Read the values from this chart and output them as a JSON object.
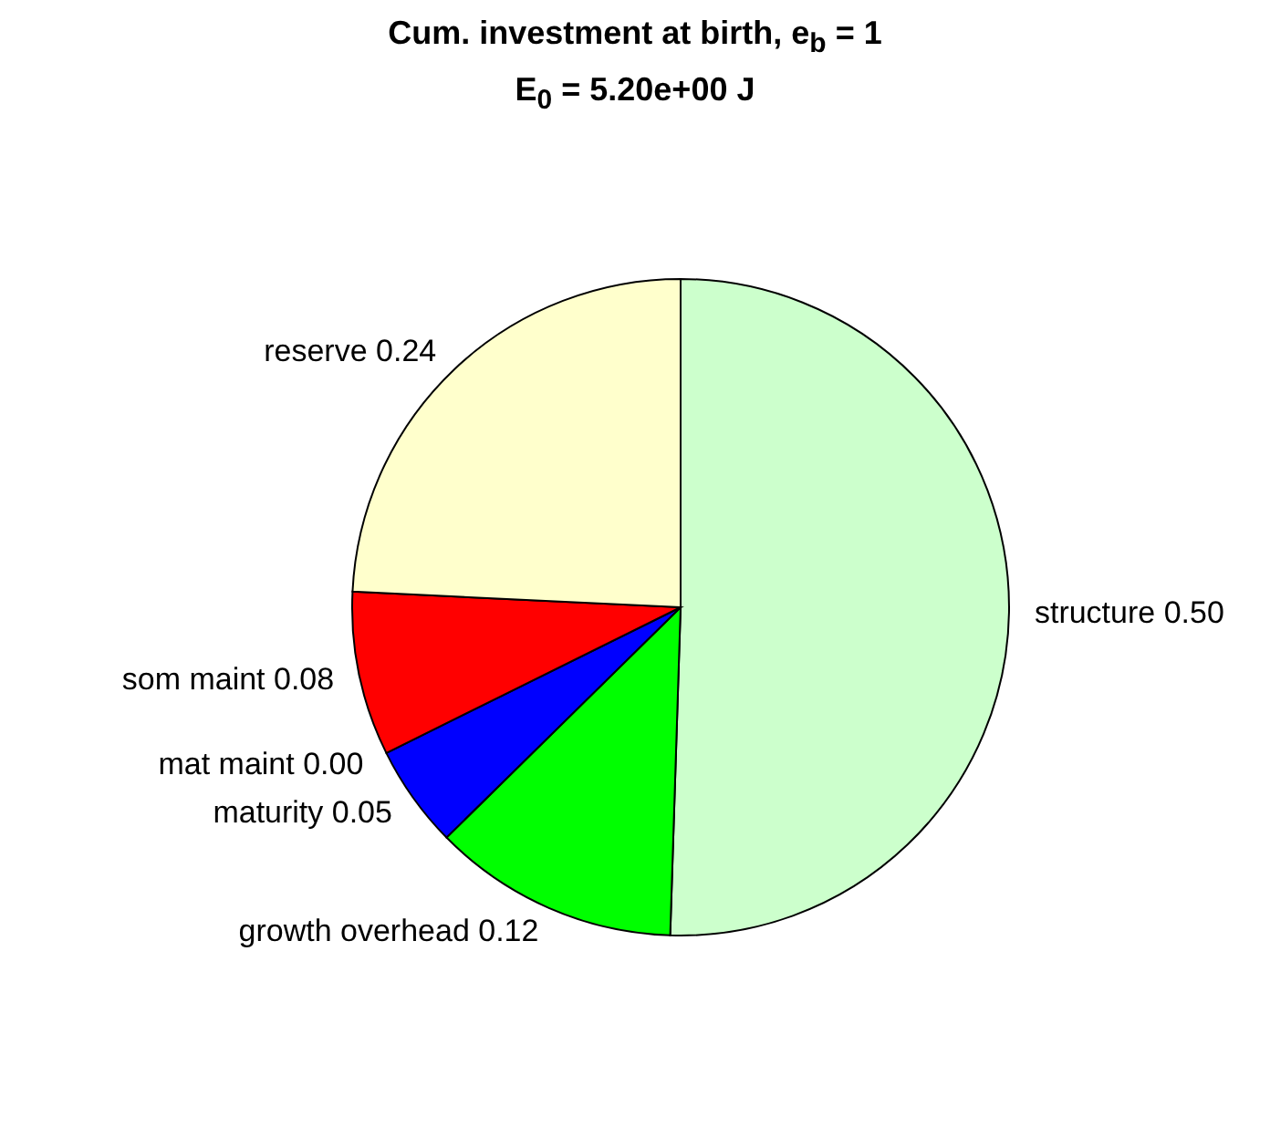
{
  "chart_data": {
    "type": "pie",
    "title": "Cum. investment at birth, e$_{b}$ = 1",
    "subtitle": "E$_{0}$ = 5.20e+00 J",
    "categories": [
      "structure",
      "growth overhead",
      "maturity",
      "mat maint",
      "som maint",
      "reserve"
    ],
    "values": [
      0.5,
      0.12,
      0.05,
      0.0,
      0.08,
      0.24
    ],
    "value_labels": [
      "0.50",
      "0.12",
      "0.05",
      "0.00",
      "0.08",
      "0.24"
    ],
    "colors": [
      "#ccffcc",
      "#00ff00",
      "#0000ff",
      "#ffffff",
      "#ff0000",
      "#ffffcc"
    ],
    "legend": false
  }
}
